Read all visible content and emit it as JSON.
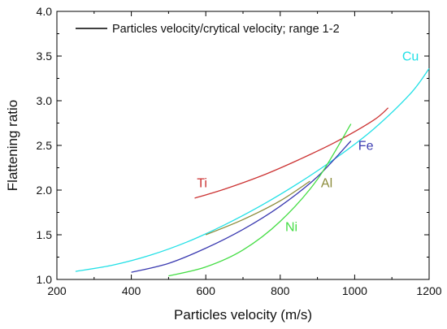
{
  "chart_data": {
    "type": "line",
    "title": "",
    "xlabel": "Particles velocity (m/s)",
    "ylabel": "Flattening ratio",
    "xlim": [
      200,
      1200
    ],
    "ylim": [
      1.0,
      4.0
    ],
    "xticks": [
      "200",
      "400",
      "600",
      "800",
      "1000",
      "1200"
    ],
    "yticks": [
      "1.0",
      "1.5",
      "2.0",
      "2.5",
      "3.0",
      "3.5",
      "4.0"
    ],
    "legend": {
      "label": "Particles velocity/crytical velocity; range 1-2",
      "position": "top-left",
      "color": "#000000"
    },
    "series": [
      {
        "name": "Cu",
        "color": "#22e0e6",
        "x": [
          250,
          350,
          450,
          550,
          650,
          750,
          850,
          950,
          1050,
          1150,
          1200
        ],
        "y": [
          1.09,
          1.16,
          1.27,
          1.42,
          1.61,
          1.83,
          2.08,
          2.36,
          2.68,
          3.08,
          3.36
        ]
      },
      {
        "name": "Fe",
        "color": "#3a3ab0",
        "x": [
          400,
          500,
          600,
          700,
          800,
          900,
          990
        ],
        "y": [
          1.08,
          1.18,
          1.35,
          1.56,
          1.82,
          2.15,
          2.55
        ]
      },
      {
        "name": "Ti",
        "color": "#cc3333",
        "x": [
          570,
          650,
          750,
          850,
          950,
          1050,
          1090
        ],
        "y": [
          1.91,
          2.01,
          2.16,
          2.34,
          2.54,
          2.78,
          2.92
        ]
      },
      {
        "name": "Al",
        "color": "#8b8b3a",
        "x": [
          600,
          700,
          800,
          880
        ],
        "y": [
          1.5,
          1.67,
          1.88,
          2.1
        ]
      },
      {
        "name": "Ni",
        "color": "#44dd44",
        "x": [
          500,
          600,
          700,
          800,
          900,
          990
        ],
        "y": [
          1.04,
          1.14,
          1.33,
          1.65,
          2.12,
          2.74
        ]
      }
    ]
  }
}
